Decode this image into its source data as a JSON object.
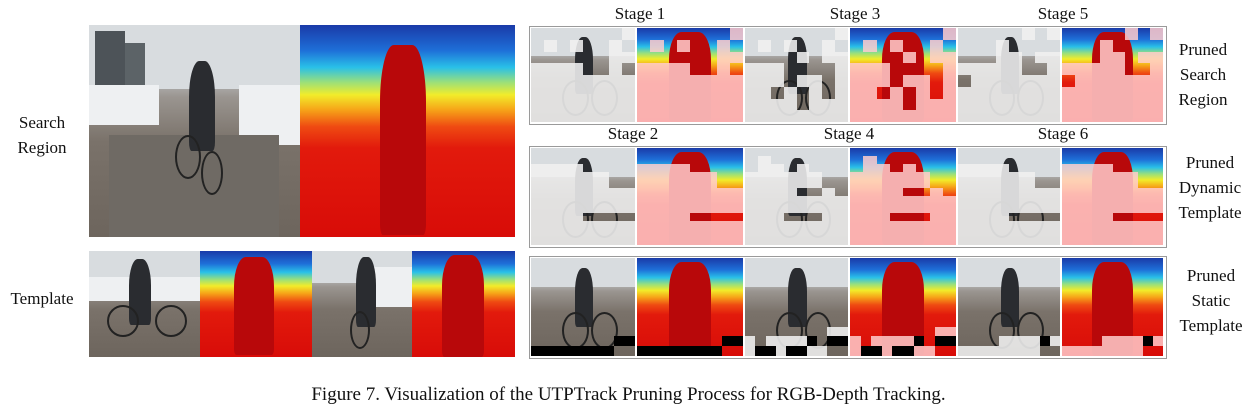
{
  "labels": {
    "search_region": "Search\nRegion",
    "template": "Template",
    "pruned_search": "Pruned\nSearch\nRegion",
    "pruned_dynamic": "Pruned\nDynamic\nTemplate",
    "pruned_static": "Pruned\nStatic\nTemplate"
  },
  "stages_top": [
    "Stage 1",
    "Stage 3",
    "Stage 5"
  ],
  "stages_mid": [
    "Stage 2",
    "Stage 4",
    "Stage 6"
  ],
  "caption": "Figure 7. Visualization of the UTPTrack Pruning Process for RGB-Depth Tracking.",
  "colors": {
    "depth_far": "#1a3aa8",
    "depth_mid": "#f2ec2a",
    "depth_near": "#d80c08",
    "pruned_rgb": "#f0f0f0",
    "pruned_depth": "#ffcdcd"
  },
  "masks": {
    "search": [
      "0000000w0w0w00w0000000wwwwww00w0wwwwwwwwwwwwwwwwwwwwwwwwwwwwwwww",
      "0000000w0w0w00w00000w0wwwww0000wwww0ww0www0w0w0wwwww0wwwwwwwwwww",
      "00000w0w000w0000000ww0wwwwwww00w0wwwwwwwwwwwwwwwwwwwwwwwwwwwwwww"
    ],
    "dynamic": [
      "0000000000000000wwww0000wwwwww00wwwwww00wwwwwwwwwwwwwwwwwwwwwwwwwwww0000wwwwwwwwwwwwwwwwwwwwwwwwww",
      "000000000w0000000ww0w000wwwwww00wwwwww00wwww00w0wwwwwwwwwwwwwwwwwww000wwwwwwwwwwwwwwwwwwwwwwwwwww",
      "0000000000000000wwww0000wwwwww00wwwwww00wwwwwwwwwwwwwwwwwwwwwwwwwwww0000wwwwwwwwwwwwwwwwwwwwwwwwww"
    ],
    "static": [
      "0000000000000000000000000000000000000000000000000000000000000000000000000000000000000000kkkkkkkkkk",
      "000000000000000000000000000000000000000000000000000000000000000000000000000000www0wwwwk0kkwkkwkkww",
      "000000000000000000000000000000000000000000000000000000000000000000000000000000000000wwwwkwwwwwwwww"
    ]
  }
}
